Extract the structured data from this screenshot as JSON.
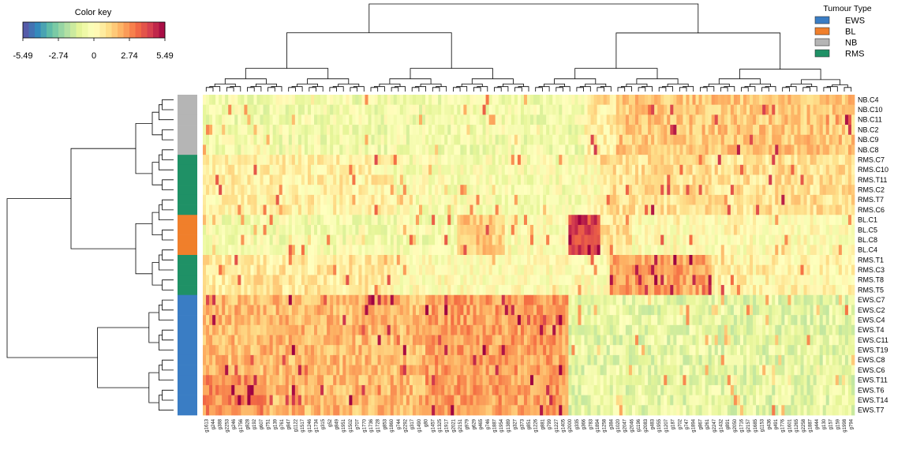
{
  "chart_data": {
    "type": "heatmap",
    "color_key": {
      "title": "Color key",
      "ticks": [
        "-5.49",
        "-2.74",
        "0",
        "2.74",
        "5.49"
      ],
      "range": [
        -5.49,
        5.49
      ],
      "palette": [
        "#5e4fa2",
        "#3288bd",
        "#66c2a5",
        "#abdda4",
        "#e6f598",
        "#ffffbf",
        "#fee08b",
        "#fdae61",
        "#f46d43",
        "#d53e4f",
        "#9e0142"
      ]
    },
    "legend": {
      "title": "Tumour Type",
      "placement": "top-right",
      "items": [
        {
          "label": "EWS",
          "color": "#3a7dc4"
        },
        {
          "label": "BL",
          "color": "#f07f2b"
        },
        {
          "label": "NB",
          "color": "#b5b5b5"
        },
        {
          "label": "RMS",
          "color": "#1f9166"
        }
      ]
    },
    "row_labels": [
      "NB.C4",
      "NB.C10",
      "NB.C11",
      "NB.C2",
      "NB.C9",
      "NB.C8",
      "RMS.C7",
      "RMS.C10",
      "RMS.T11",
      "RMS.C2",
      "RMS.T7",
      "RMS.C6",
      "BL.C1",
      "BL.C5",
      "BL.C8",
      "BL.C4",
      "RMS.T1",
      "RMS.C3",
      "RMS.T8",
      "RMS.T5",
      "EWS.C7",
      "EWS.C2",
      "EWS.C4",
      "EWS.T4",
      "EWS.C11",
      "EWS.T19",
      "EWS.C8",
      "EWS.C6",
      "EWS.T11",
      "EWS.T6",
      "EWS.T14",
      "EWS.T7"
    ],
    "row_groups": [
      "NB",
      "NB",
      "NB",
      "NB",
      "NB",
      "NB",
      "RMS",
      "RMS",
      "RMS",
      "RMS",
      "RMS",
      "RMS",
      "BL",
      "BL",
      "BL",
      "BL",
      "RMS",
      "RMS",
      "RMS",
      "RMS",
      "EWS",
      "EWS",
      "EWS",
      "EWS",
      "EWS",
      "EWS",
      "EWS",
      "EWS",
      "EWS",
      "EWS",
      "EWS",
      "EWS"
    ],
    "column_labels": [
      "g1613",
      "g244",
      "g388",
      "g2253",
      "g246",
      "g1756",
      "g828",
      "g192",
      "g607",
      "g751",
      "g139",
      "g761",
      "g847",
      "g1122",
      "g1517",
      "g1246",
      "g1734",
      "g315",
      "g52",
      "g849",
      "g1951",
      "g1502",
      "g707",
      "g1770",
      "g1736",
      "g1728",
      "g853",
      "g1860",
      "g744",
      "g2292",
      "g317",
      "g1490",
      "g80",
      "g1457",
      "g1325",
      "g1917",
      "g2021",
      "g2151",
      "g979",
      "g629",
      "g465",
      "g746",
      "g1887",
      "g1954",
      "g1389",
      "g327",
      "g373",
      "g851",
      "g1226",
      "g881",
      "g799",
      "g1227",
      "g1405",
      "g2000",
      "g335",
      "g366",
      "g783",
      "g1894",
      "g1258",
      "g384",
      "g1020",
      "g2047",
      "g2046",
      "g1196",
      "g2083",
      "g483",
      "g1955",
      "g1207",
      "g187",
      "g702",
      "g747",
      "g1894",
      "g867",
      "g261",
      "g2247",
      "g1432",
      "g891",
      "g2050",
      "g1716",
      "g2157",
      "g1685",
      "g1153",
      "g436",
      "g491",
      "g1776",
      "g1601",
      "g1265",
      "g2258",
      "g1887",
      "g444",
      "g130",
      "g157",
      "g159",
      "g1998",
      "g794"
    ]
  }
}
